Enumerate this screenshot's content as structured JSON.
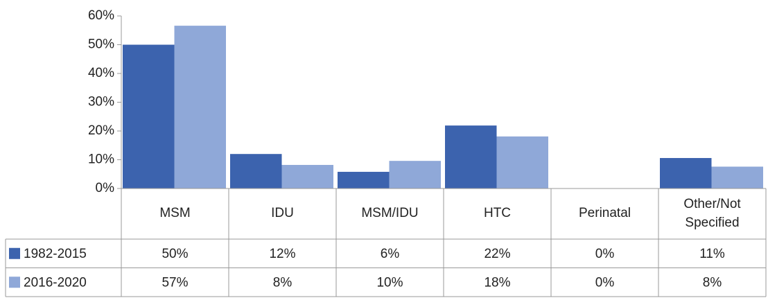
{
  "chart_data": {
    "type": "bar",
    "categories": [
      "MSM",
      "IDU",
      "MSM/IDU",
      "HTC",
      "Perinatal",
      "Other/Not Specified"
    ],
    "series": [
      {
        "name": "1982-2015",
        "color": "#3c63ae",
        "values": [
          50,
          12,
          5.8,
          21.9,
          0,
          10.6
        ],
        "value_labels": [
          "50%",
          "12%",
          "6%",
          "22%",
          "0%",
          "11%"
        ]
      },
      {
        "name": "2016-2020",
        "color": "#8fa8d8",
        "values": [
          56.6,
          8.2,
          9.6,
          18.1,
          0,
          7.6
        ],
        "value_labels": [
          "57%",
          "8%",
          "10%",
          "18%",
          "0%",
          "8%"
        ]
      }
    ],
    "ylim": [
      0,
      60
    ],
    "yticks": [
      {
        "value": 0,
        "label": "0%"
      },
      {
        "value": 10,
        "label": "10%"
      },
      {
        "value": 20,
        "label": "20%"
      },
      {
        "value": 30,
        "label": "30%"
      },
      {
        "value": 40,
        "label": "40%"
      },
      {
        "value": 50,
        "label": "50%"
      },
      {
        "value": 60,
        "label": "60%"
      }
    ],
    "grid": false
  }
}
